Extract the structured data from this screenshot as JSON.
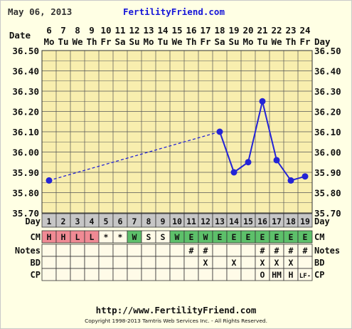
{
  "header": {
    "date": "May 06, 2013",
    "site": "FertilityFriend.com"
  },
  "footer": {
    "url": "http://www.FertilityFriend.com",
    "copyright": "Copyright 1998-2013 Tamtris Web Services Inc. - All Rights Reserved."
  },
  "labels": {
    "date": "Date",
    "day": "Day",
    "cm": "CM",
    "notes": "Notes",
    "bd": "BD",
    "cp": "CP"
  },
  "colors": {
    "plot_bg": "#f8eeae",
    "grid": "#555555",
    "line": "#2424d6",
    "cm_H": "#f08a94",
    "cm_L": "#f08a94",
    "cm_W": "#5dc06a",
    "cm_E": "#5dc06a",
    "day_bg": "#c6c6c6",
    "cell_bg": "#fffbe8"
  },
  "chart_data": {
    "type": "line",
    "title": "",
    "ylim": [
      35.7,
      36.5
    ],
    "y_ticks": [
      "35.70",
      "35.80",
      "35.90",
      "36.00",
      "36.10",
      "36.20",
      "36.30",
      "36.40",
      "36.50"
    ],
    "dates": [
      "6",
      "7",
      "8",
      "9",
      "10",
      "11",
      "12",
      "13",
      "14",
      "15",
      "16",
      "17",
      "18",
      "19",
      "20",
      "21",
      "22",
      "23",
      "24"
    ],
    "weekdays": [
      "Mo",
      "Tu",
      "We",
      "Th",
      "Fr",
      "Sa",
      "Su",
      "Mo",
      "Tu",
      "We",
      "Th",
      "Fr",
      "Sa",
      "Su",
      "Mo",
      "Tu",
      "We",
      "Th",
      "Fr"
    ],
    "cycle_days": [
      "1",
      "2",
      "3",
      "4",
      "5",
      "6",
      "7",
      "8",
      "9",
      "10",
      "11",
      "12",
      "13",
      "14",
      "15",
      "16",
      "17",
      "18",
      "19"
    ],
    "temperatures": [
      35.86,
      null,
      null,
      null,
      null,
      null,
      null,
      null,
      null,
      null,
      null,
      null,
      36.1,
      35.9,
      35.95,
      36.25,
      35.96,
      35.86,
      35.88
    ],
    "series": [
      {
        "style": "dashed",
        "points": [
          [
            1,
            35.86
          ],
          [
            13,
            36.1
          ]
        ]
      },
      {
        "style": "solid",
        "points": [
          [
            13,
            36.1
          ],
          [
            14,
            35.9
          ],
          [
            15,
            35.95
          ],
          [
            16,
            36.25
          ],
          [
            17,
            35.96
          ],
          [
            18,
            35.86
          ],
          [
            19,
            35.88
          ]
        ]
      }
    ],
    "cm": [
      "H",
      "H",
      "L",
      "L",
      "*",
      "*",
      "W",
      "S",
      "S",
      "W",
      "E",
      "W",
      "E",
      "E",
      "E",
      "E",
      "E",
      "E",
      "E"
    ],
    "notes": [
      "",
      "",
      "",
      "",
      "",
      "",
      "",
      "",
      "",
      "",
      "#",
      "#",
      "",
      "",
      "",
      "#",
      "#",
      "#",
      "#"
    ],
    "bd": [
      "",
      "",
      "",
      "",
      "",
      "",
      "",
      "",
      "",
      "",
      "",
      "X",
      "",
      "X",
      "",
      "X",
      "X",
      "X",
      ""
    ],
    "cp": [
      "",
      "",
      "",
      "",
      "",
      "",
      "",
      "",
      "",
      "",
      "",
      "",
      "",
      "",
      "",
      "O",
      "HM",
      "H",
      "LF-"
    ]
  }
}
